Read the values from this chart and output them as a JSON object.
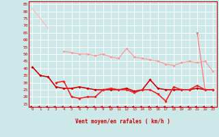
{
  "x": [
    0,
    1,
    2,
    3,
    4,
    5,
    6,
    7,
    8,
    9,
    10,
    11,
    12,
    13,
    14,
    15,
    16,
    17,
    18,
    19,
    20,
    21,
    22,
    23
  ],
  "line1": [
    82,
    75,
    68,
    null,
    null,
    null,
    null,
    null,
    null,
    null,
    null,
    null,
    null,
    null,
    null,
    null,
    null,
    null,
    null,
    null,
    null,
    null,
    null,
    null
  ],
  "line2": [
    null,
    null,
    null,
    null,
    52,
    51,
    50,
    50,
    49,
    50,
    48,
    47,
    54,
    48,
    47,
    46,
    45,
    43,
    42,
    44,
    45,
    44,
    45,
    38
  ],
  "line3": [
    41,
    35,
    34,
    27,
    26,
    26,
    27,
    26,
    25,
    25,
    25,
    25,
    26,
    24,
    25,
    32,
    26,
    25,
    25,
    25,
    25,
    26,
    25,
    25
  ],
  "line4": [
    null,
    null,
    null,
    null,
    null,
    null,
    null,
    null,
    null,
    null,
    null,
    null,
    null,
    null,
    null,
    null,
    null,
    null,
    null,
    null,
    null,
    65,
    25,
    null
  ],
  "line5": [
    null,
    null,
    null,
    30,
    31,
    20,
    19,
    20,
    20,
    25,
    26,
    25,
    25,
    23,
    25,
    25,
    22,
    17,
    27,
    25,
    25,
    28,
    25,
    25
  ],
  "background": "#cce8e8",
  "grid_color": "#ffffff",
  "line1_color": "#ffbbbb",
  "line2_color": "#ff9999",
  "line3_color": "#cc0000",
  "line4_color": "#ff7777",
  "line5_color": "#ee2222",
  "red_color": "#cc0000",
  "xlabel_label": "Vent moyen/en rafales ( km/h )",
  "yticks": [
    15,
    20,
    25,
    30,
    35,
    40,
    45,
    50,
    55,
    60,
    65,
    70,
    75,
    80,
    85
  ],
  "ylim": [
    13,
    87
  ],
  "xlim": [
    -0.5,
    23.5
  ]
}
